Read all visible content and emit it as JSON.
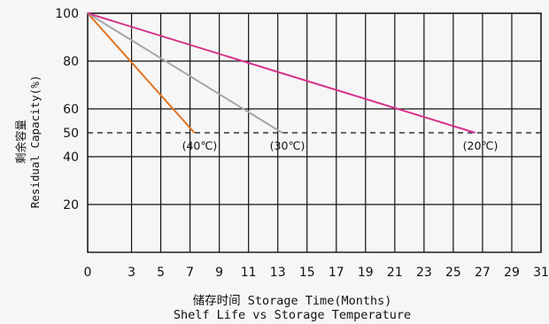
{
  "chart_data": {
    "type": "line",
    "title": "Shelf Life vs Storage Temperature",
    "xlabel": "储存时间 Storage Time(Months)",
    "ylabel_cn": "剩余容量",
    "ylabel_en": "Residual Capacity(%)",
    "xlim": [
      0,
      31
    ],
    "ylim": [
      0,
      100
    ],
    "x_ticks": [
      0,
      3,
      5,
      7,
      9,
      11,
      13,
      15,
      17,
      19,
      21,
      23,
      25,
      27,
      29,
      31
    ],
    "y_ticks": [
      20,
      40,
      50,
      60,
      80,
      100
    ],
    "reference_line": {
      "y": 50,
      "style": "dashed"
    },
    "grid": true,
    "series": [
      {
        "name": "(40℃)",
        "color": "#e0731f",
        "x": [
          0,
          7.3
        ],
        "y": [
          100,
          50
        ]
      },
      {
        "name": "(30℃)",
        "color": "#a6a6a6",
        "x": [
          0,
          13.3
        ],
        "y": [
          100,
          50
        ]
      },
      {
        "name": "(20℃)",
        "color": "#d6338c",
        "x": [
          0,
          26.5
        ],
        "y": [
          100,
          50
        ]
      }
    ]
  }
}
